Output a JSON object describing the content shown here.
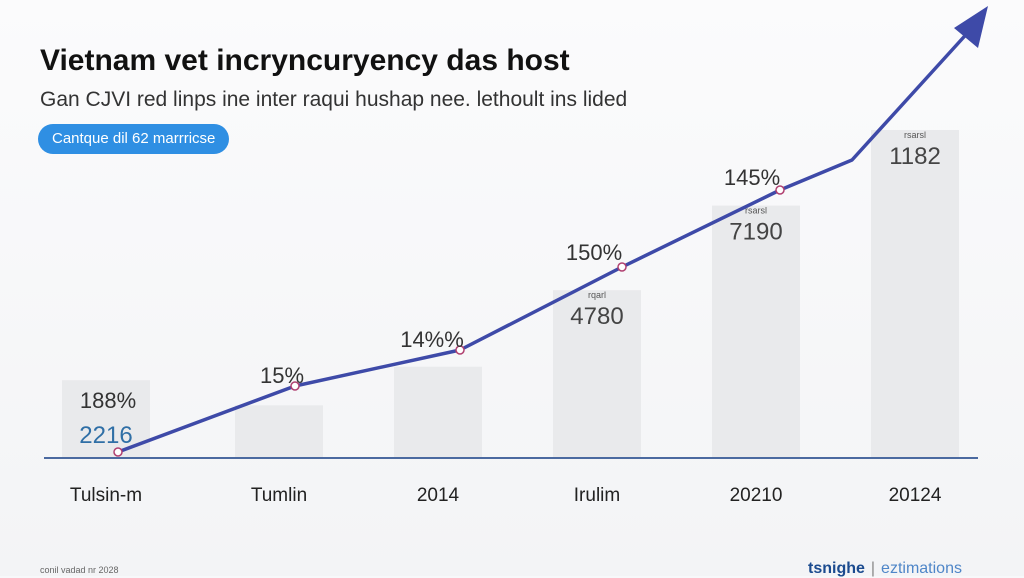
{
  "header": {
    "title": "Vietnam vet incryncuryency das host",
    "subtitle": "Gan CJVI red linps ine inter raqui hushap nee. lethoult ins lided",
    "pill_label": "Cantque dil 62 marrricse"
  },
  "footer": {
    "left_note": "conil vadad nr 2028",
    "brand": "tsnighe",
    "separator": "|",
    "tag": "eztimations"
  },
  "colors": {
    "line": "#3e4aa8",
    "bar": "#e9eaec",
    "baseline": "#4b6aa0",
    "pill": "#2f8fe3"
  },
  "chart_data": {
    "type": "bar",
    "title": "Vietnam vet incryncuryency das host",
    "categories": [
      "Tulsin-m",
      "Tumlin",
      "2014",
      "Irulim",
      "20210",
      "20124"
    ],
    "bar_values": [
      2216,
      1500,
      2600,
      4780,
      7190,
      1182
    ],
    "bar_value_labels": [
      "2216",
      "",
      "",
      "4780",
      "7190",
      "1182"
    ],
    "bar_small_labels": [
      "",
      "",
      "",
      "rqarl",
      "rsarsl",
      "rsarsl"
    ],
    "line_values_pct": [
      188,
      15,
      14,
      150,
      145,
      0
    ],
    "line_labels": [
      "188%",
      "15%",
      "14%%",
      "150%",
      "145%",
      ""
    ],
    "line_trend": [
      0,
      25,
      32,
      62,
      82,
      100
    ],
    "ylim": [
      0,
      9400
    ],
    "grid": false,
    "legend": "none"
  }
}
